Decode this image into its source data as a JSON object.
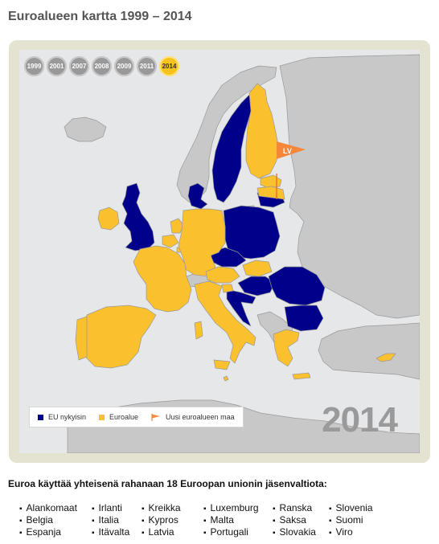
{
  "title": "Euroalueen kartta 1999 – 2014",
  "years": [
    "1999",
    "2001",
    "2007",
    "2008",
    "2009",
    "2011",
    "2014"
  ],
  "selected_year": "2014",
  "legend": {
    "eu": "EU nykyisin",
    "euro": "Euroalue",
    "new": "Uusi euroalueen maa"
  },
  "new_country_label": "LV",
  "colors": {
    "eu": "#00008b",
    "euro": "#fbc02d",
    "non_eu": "#c8c8c8",
    "sea": "#e6e7e8",
    "flag": "#f5873a"
  },
  "intro": "Euroa käyttää yhteisenä rahanaan 18 Euroopan unionin jäsenvaltiota:",
  "countries": [
    "Alankomaat",
    "Belgia",
    "Espanja",
    "Irlanti",
    "Italia",
    "Itävalta",
    "Kreikka",
    "Kypros",
    "Latvia",
    "Luxemburg",
    "Malta",
    "Portugali",
    "Ranska",
    "Saksa",
    "Slovakia",
    "Slovenia",
    "Suomi",
    "Viro"
  ]
}
